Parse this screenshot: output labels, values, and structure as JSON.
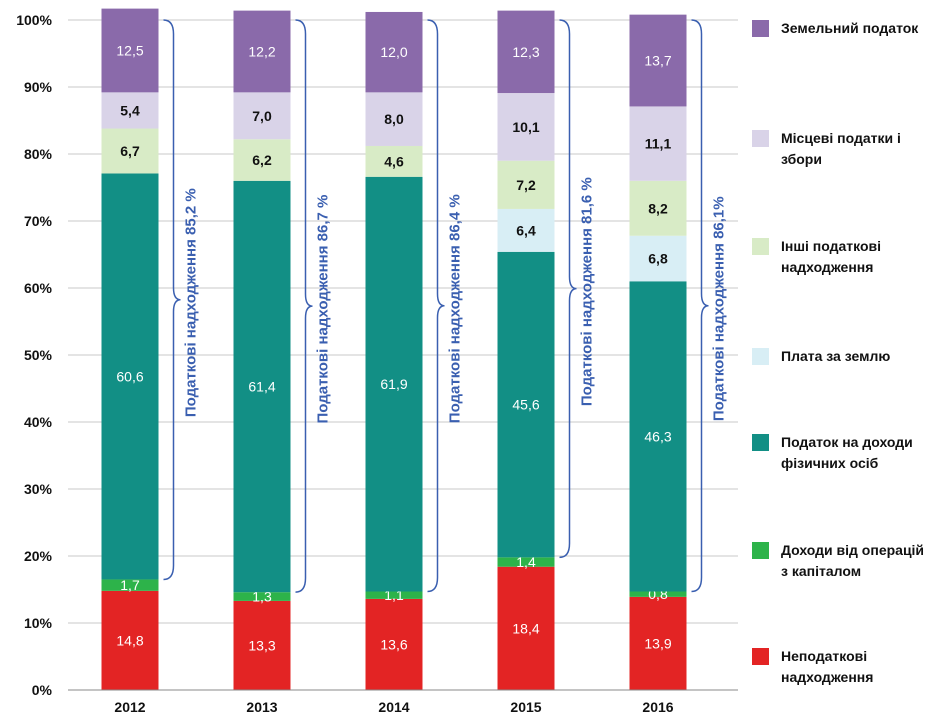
{
  "chart_data": {
    "type": "bar",
    "stacked": true,
    "categories": [
      "2012",
      "2013",
      "2014",
      "2015",
      "2016"
    ],
    "y_ticks": [
      "0%",
      "10%",
      "20%",
      "30%",
      "40%",
      "50%",
      "60%",
      "70%",
      "80%",
      "90%",
      "100%"
    ],
    "ylim": [
      0,
      100
    ],
    "series": [
      {
        "name": "Неподаткові надходження",
        "color": "#e32424",
        "label_color": "#ffffff",
        "values": [
          14.8,
          13.3,
          13.6,
          18.4,
          13.9
        ],
        "labels": [
          "14,8",
          "13,3",
          "13,6",
          "18,4",
          "13,9"
        ]
      },
      {
        "name": "Доходи від операцій з капіталом",
        "color": "#2db34a",
        "label_color": "#ffffff",
        "values": [
          1.7,
          1.3,
          1.1,
          1.4,
          0.8
        ],
        "labels": [
          "1,7",
          "1,3",
          "1,1",
          "1,4",
          "0,8"
        ]
      },
      {
        "name": "Податок на доходи фізичних осіб",
        "color": "#128f85",
        "label_color": "#ffffff",
        "values": [
          60.6,
          61.4,
          61.9,
          45.6,
          46.3
        ],
        "labels": [
          "60,6",
          "61,4",
          "61,9",
          "45,6",
          "46,3"
        ]
      },
      {
        "name": "Плата за землю",
        "color": "#d8eef5",
        "label_color": "#111111",
        "values": [
          0,
          0,
          0,
          6.4,
          6.8
        ],
        "labels": [
          "",
          "",
          "",
          "6,4",
          "6,8"
        ]
      },
      {
        "name": "Інші податкові надходження",
        "color": "#d8ebc6",
        "label_color": "#111111",
        "values": [
          6.7,
          6.2,
          4.6,
          7.2,
          8.2
        ],
        "labels": [
          "6,7",
          "6,2",
          "4,6",
          "7,2",
          "8,2"
        ]
      },
      {
        "name": "Місцеві податки і збори",
        "color": "#d9d3e8",
        "label_color": "#111111",
        "values": [
          5.4,
          7.0,
          8.0,
          10.1,
          11.1
        ],
        "labels": [
          "5,4",
          "7,0",
          "8,0",
          "10,1",
          "11,1"
        ]
      },
      {
        "name": "Земельний податок",
        "color": "#8a6aaa",
        "label_color": "#ffffff",
        "values": [
          12.5,
          12.2,
          12.0,
          12.3,
          13.7
        ],
        "labels": [
          "12,5",
          "12,2",
          "12,0",
          "12,3",
          "13,7"
        ]
      }
    ],
    "braces": [
      {
        "text": "Податкові надходження  85,2 %",
        "from": 16.5,
        "to": 100
      },
      {
        "text": "Податкові надходження  86,7 %",
        "from": 14.6,
        "to": 100
      },
      {
        "text": "Податкові надходження  86,4 %",
        "from": 14.7,
        "to": 100
      },
      {
        "text": "Податкові надходження  81,6 %",
        "from": 19.8,
        "to": 100
      },
      {
        "text": "Податкові надходження  86,1%",
        "from": 14.7,
        "to": 100
      }
    ],
    "legend": [
      {
        "label": "Земельний податок",
        "color": "#8a6aaa"
      },
      {
        "label": "Місцеві податки і збори",
        "color": "#d9d3e8"
      },
      {
        "label": "Інші податкові надходження",
        "color": "#d8ebc6"
      },
      {
        "label": "Плата за землю",
        "color": "#d8eef5"
      },
      {
        "label": "Податок на доходи фізичних осіб",
        "color": "#128f85"
      },
      {
        "label": "Доходи від операцій з капіталом",
        "color": "#2db34a"
      },
      {
        "label": "Неподаткові надходження",
        "color": "#e32424"
      }
    ]
  }
}
